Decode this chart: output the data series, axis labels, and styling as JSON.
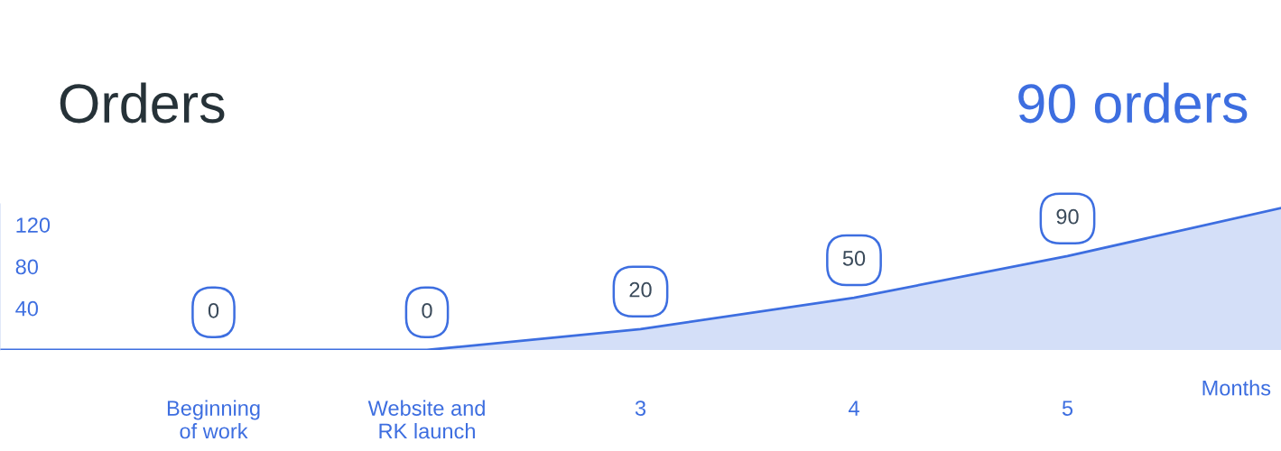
{
  "chart_data": {
    "type": "area",
    "title": "Orders",
    "xlabel": "Months",
    "annotations": [
      "90 orders"
    ],
    "categories": [
      null,
      "Beginning\nof work",
      "Website and\nRK launch",
      "3",
      "4",
      "5",
      null
    ],
    "series": [
      {
        "color": "#3d6ee0",
        "values": [
          0,
          0,
          0,
          20,
          50,
          90,
          136
        ]
      }
    ],
    "value_labels": [
      null,
      "0",
      "0",
      "20",
      "50",
      "90",
      null
    ],
    "ylim": [
      0,
      140
    ],
    "yticks": [
      40,
      80,
      120
    ],
    "grid": false,
    "legend": false,
    "marker": "none"
  }
}
